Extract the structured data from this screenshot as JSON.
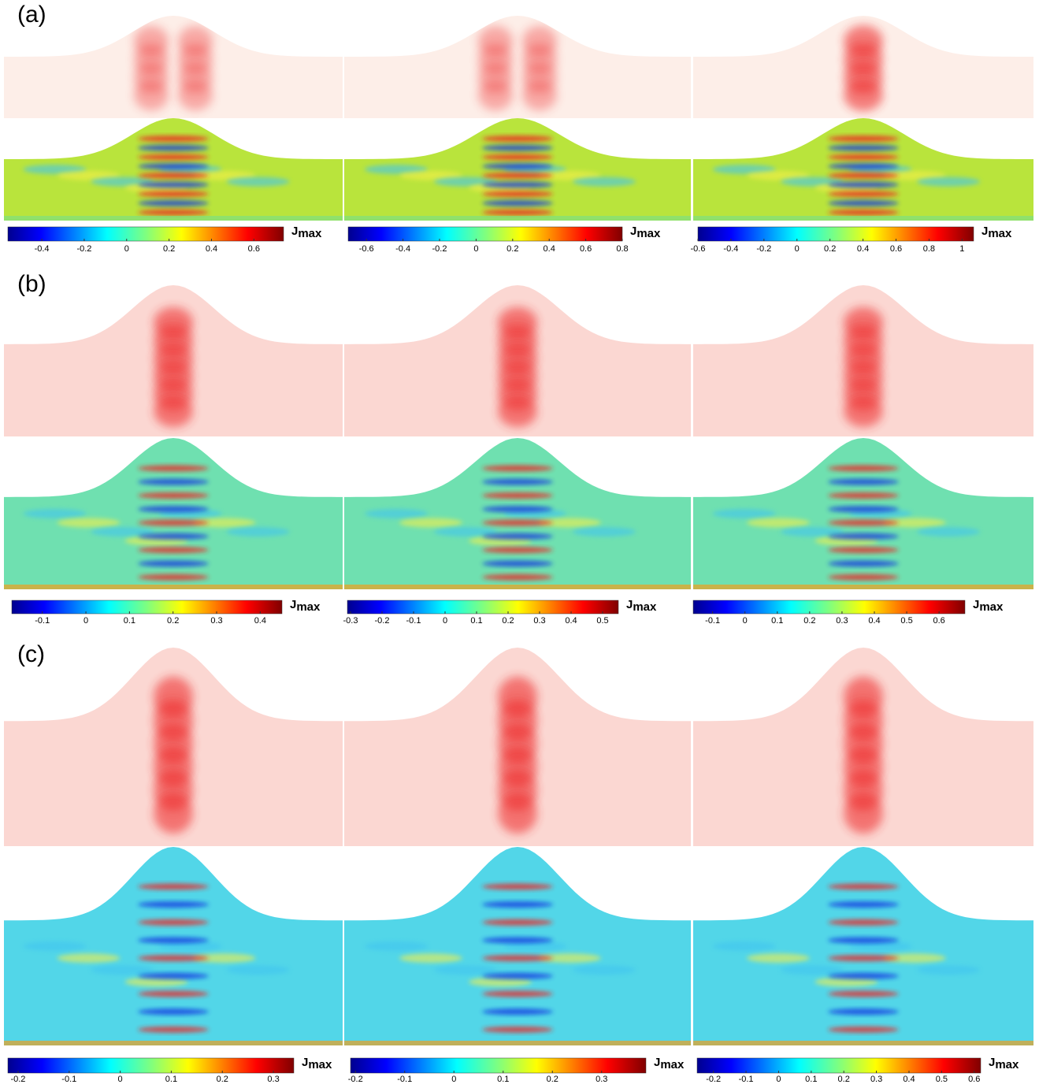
{
  "rows": [
    {
      "label": "(a)",
      "colorbars": [
        {
          "lim": [
            -0.56,
            0.74
          ],
          "ticks": [
            -0.4,
            -0.2,
            0,
            0.2,
            0.4,
            0.6
          ],
          "label": "J",
          "label_sub": "max"
        },
        {
          "lim": [
            -0.7,
            0.8
          ],
          "ticks": [
            -0.6,
            -0.4,
            -0.2,
            0,
            0.2,
            0.4,
            0.6,
            0.8
          ],
          "label": "J",
          "label_sub": "max"
        },
        {
          "lim": [
            -0.6,
            1.07
          ],
          "ticks": [
            -0.6,
            -0.4,
            -0.2,
            0,
            0.2,
            0.4,
            0.6,
            0.8,
            1
          ],
          "label": "J",
          "label_sub": "max"
        }
      ]
    },
    {
      "label": "(b)",
      "colorbars": [
        {
          "lim": [
            -0.17,
            0.45
          ],
          "ticks": [
            -0.1,
            0,
            0.1,
            0.2,
            0.3,
            0.4
          ],
          "label": "J",
          "label_sub": "max"
        },
        {
          "lim": [
            -0.31,
            0.55
          ],
          "ticks": [
            -0.3,
            -0.2,
            -0.1,
            0,
            0.1,
            0.2,
            0.3,
            0.4,
            0.5
          ],
          "label": "J",
          "label_sub": "max"
        },
        {
          "lim": [
            -0.16,
            0.68
          ],
          "ticks": [
            -0.1,
            0,
            0.1,
            0.2,
            0.3,
            0.4,
            0.5,
            0.6
          ],
          "label": "J",
          "label_sub": "max"
        }
      ]
    },
    {
      "label": "(c)",
      "colorbars": [
        {
          "lim": [
            -0.22,
            0.34
          ],
          "ticks": [
            -0.2,
            -0.1,
            0,
            0.1,
            0.2,
            0.3
          ],
          "label": "J",
          "label_sub": "max"
        },
        {
          "lim": [
            -0.21,
            0.39
          ],
          "ticks": [
            -0.2,
            -0.1,
            0,
            0.1,
            0.2,
            0.3
          ],
          "label": "J",
          "label_sub": "max"
        },
        {
          "lim": [
            -0.25,
            0.62
          ],
          "ticks": [
            -0.2,
            -0.1,
            0,
            0.1,
            0.2,
            0.3,
            0.4,
            0.5,
            0.6
          ],
          "label": "J",
          "label_sub": "max"
        }
      ]
    }
  ]
}
